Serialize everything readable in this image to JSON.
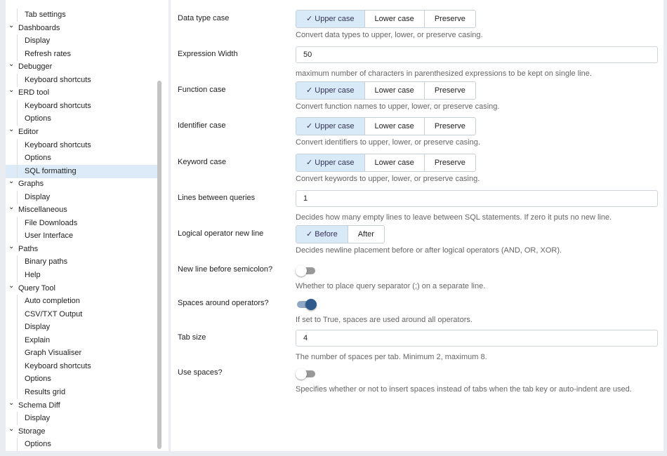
{
  "tree": [
    {
      "label": "Tab settings",
      "type": "child"
    },
    {
      "label": "Dashboards",
      "type": "parent"
    },
    {
      "label": "Display",
      "type": "child"
    },
    {
      "label": "Refresh rates",
      "type": "child"
    },
    {
      "label": "Debugger",
      "type": "parent"
    },
    {
      "label": "Keyboard shortcuts",
      "type": "child"
    },
    {
      "label": "ERD tool",
      "type": "parent"
    },
    {
      "label": "Keyboard shortcuts",
      "type": "child"
    },
    {
      "label": "Options",
      "type": "child"
    },
    {
      "label": "Editor",
      "type": "parent"
    },
    {
      "label": "Keyboard shortcuts",
      "type": "child"
    },
    {
      "label": "Options",
      "type": "child"
    },
    {
      "label": "SQL formatting",
      "type": "child",
      "selected": true
    },
    {
      "label": "Graphs",
      "type": "parent"
    },
    {
      "label": "Display",
      "type": "child"
    },
    {
      "label": "Miscellaneous",
      "type": "parent"
    },
    {
      "label": "File Downloads",
      "type": "child"
    },
    {
      "label": "User Interface",
      "type": "child"
    },
    {
      "label": "Paths",
      "type": "parent"
    },
    {
      "label": "Binary paths",
      "type": "child"
    },
    {
      "label": "Help",
      "type": "child"
    },
    {
      "label": "Query Tool",
      "type": "parent"
    },
    {
      "label": "Auto completion",
      "type": "child"
    },
    {
      "label": "CSV/TXT Output",
      "type": "child"
    },
    {
      "label": "Display",
      "type": "child"
    },
    {
      "label": "Explain",
      "type": "child"
    },
    {
      "label": "Graph Visualiser",
      "type": "child"
    },
    {
      "label": "Keyboard shortcuts",
      "type": "child"
    },
    {
      "label": "Options",
      "type": "child"
    },
    {
      "label": "Results grid",
      "type": "child"
    },
    {
      "label": "Schema Diff",
      "type": "parent"
    },
    {
      "label": "Display",
      "type": "child"
    },
    {
      "label": "Storage",
      "type": "parent"
    },
    {
      "label": "Options",
      "type": "child"
    }
  ],
  "settings": [
    {
      "label": "Data type case",
      "kind": "buttons",
      "options": [
        "Upper case",
        "Lower case",
        "Preserve"
      ],
      "selected": 0,
      "help": "Convert data types to upper, lower, or preserve casing."
    },
    {
      "label": "Expression Width",
      "kind": "input",
      "value": "50",
      "help": "maximum number of characters in parenthesized expressions to be kept on single line."
    },
    {
      "label": "Function case",
      "kind": "buttons",
      "options": [
        "Upper case",
        "Lower case",
        "Preserve"
      ],
      "selected": 0,
      "help": "Convert function names to upper, lower, or preserve casing."
    },
    {
      "label": "Identifier case",
      "kind": "buttons",
      "options": [
        "Upper case",
        "Lower case",
        "Preserve"
      ],
      "selected": 0,
      "help": "Convert identifiers to upper, lower, or preserve casing."
    },
    {
      "label": "Keyword case",
      "kind": "buttons",
      "options": [
        "Upper case",
        "Lower case",
        "Preserve"
      ],
      "selected": 0,
      "help": "Convert keywords to upper, lower, or preserve casing."
    },
    {
      "label": "Lines between queries",
      "kind": "input",
      "value": "1",
      "help": "Decides how many empty lines to leave between SQL statements. If zero it puts no new line."
    },
    {
      "label": "Logical operator new line",
      "kind": "buttons",
      "options": [
        "Before",
        "After"
      ],
      "selected": 0,
      "help": "Decides newline placement before or after logical operators (AND, OR, XOR)."
    },
    {
      "label": "New line before semicolon?",
      "kind": "toggle",
      "on": false,
      "help": "Whether to place query separator (;) on a separate line."
    },
    {
      "label": "Spaces around operators?",
      "kind": "toggle",
      "on": true,
      "help": "If set to True, spaces are used around all operators."
    },
    {
      "label": "Tab size",
      "kind": "input",
      "value": "4",
      "help": "The number of spaces per tab. Minimum 2, maximum 8."
    },
    {
      "label": "Use spaces?",
      "kind": "toggle",
      "on": false,
      "help": "Specifies whether or not to insert spaces instead of tabs when the tab key or auto-indent are used."
    }
  ]
}
